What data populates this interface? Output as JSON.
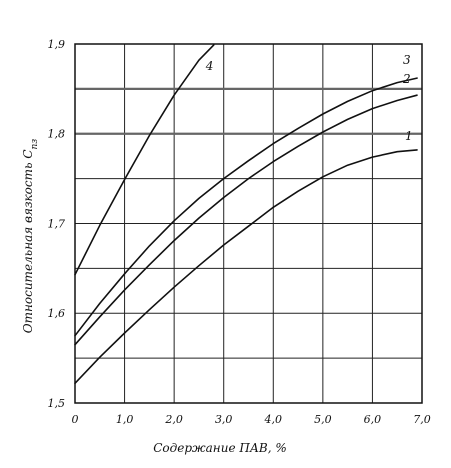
{
  "chart_data": {
    "type": "line",
    "title": "",
    "xlabel": "Содержание ПАВ, %",
    "ylabel": "Относительная вязкость C",
    "ylabel_subscript": "пз",
    "xlim": [
      0,
      7.0
    ],
    "ylim": [
      1.5,
      1.9
    ],
    "grid": true,
    "x_ticks": [
      "0",
      "1,0",
      "2,0",
      "3,0",
      "4,0",
      "5,0",
      "6,0",
      "7,0"
    ],
    "y_ticks": [
      "1,5",
      "1,6",
      "1,7",
      "1,8",
      "1,9"
    ],
    "series": [
      {
        "name": "1",
        "x": [
          0,
          0.5,
          1,
          1.5,
          2,
          2.5,
          3,
          3.5,
          4,
          4.5,
          5,
          5.5,
          6,
          6.5,
          6.9
        ],
        "y": [
          1.522,
          1.551,
          1.578,
          1.604,
          1.629,
          1.653,
          1.676,
          1.697,
          1.718,
          1.736,
          1.752,
          1.765,
          1.774,
          1.78,
          1.782
        ]
      },
      {
        "name": "2",
        "x": [
          0,
          0.5,
          1,
          1.5,
          2,
          2.5,
          3,
          3.5,
          4,
          4.5,
          5,
          5.5,
          6,
          6.5,
          6.9
        ],
        "y": [
          1.565,
          1.596,
          1.626,
          1.654,
          1.681,
          1.706,
          1.729,
          1.75,
          1.769,
          1.786,
          1.802,
          1.816,
          1.828,
          1.837,
          1.843
        ]
      },
      {
        "name": "3",
        "x": [
          0,
          0.5,
          1,
          1.5,
          2,
          2.5,
          3,
          3.5,
          4,
          4.5,
          5,
          5.5,
          6,
          6.5,
          6.9
        ],
        "y": [
          1.575,
          1.611,
          1.644,
          1.675,
          1.703,
          1.728,
          1.75,
          1.77,
          1.789,
          1.806,
          1.822,
          1.836,
          1.848,
          1.857,
          1.862
        ]
      },
      {
        "name": "4",
        "x": [
          0,
          0.5,
          1,
          1.5,
          2,
          2.5,
          2.8
        ],
        "y": [
          1.643,
          1.698,
          1.749,
          1.798,
          1.843,
          1.882,
          1.899
        ]
      }
    ]
  }
}
